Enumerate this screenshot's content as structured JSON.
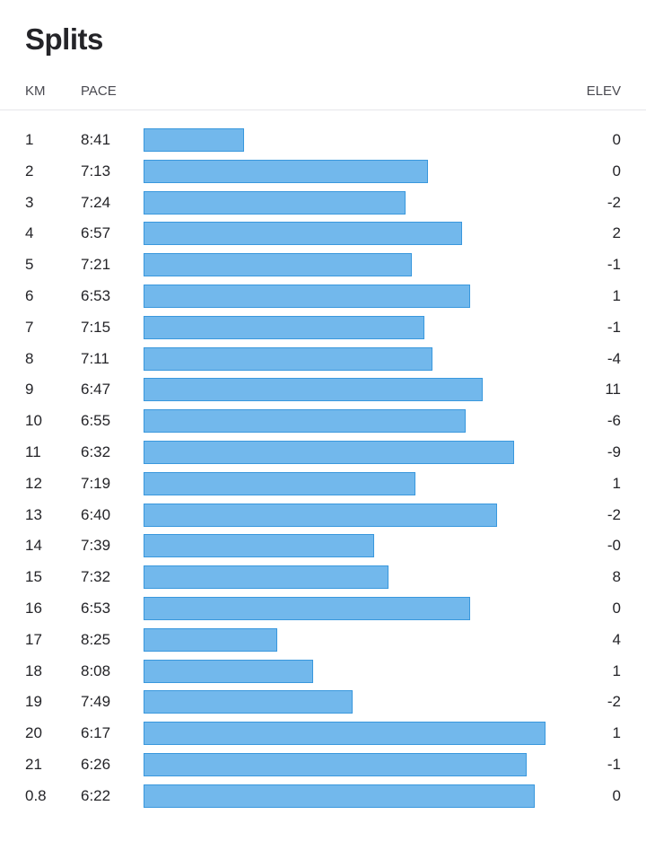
{
  "title": "Splits",
  "columns": {
    "km": "KM",
    "pace": "PACE",
    "elev": "ELEV"
  },
  "colors": {
    "bar_fill": "#72b8ec",
    "bar_border": "#3a98dd"
  },
  "chart_data": {
    "type": "bar",
    "orientation": "horizontal",
    "title": "Splits",
    "pace_unit": "min/km",
    "categories": [
      "1",
      "2",
      "3",
      "4",
      "5",
      "6",
      "7",
      "8",
      "9",
      "10",
      "11",
      "12",
      "13",
      "14",
      "15",
      "16",
      "17",
      "18",
      "19",
      "20",
      "21",
      "0.8"
    ],
    "pace": [
      "8:41",
      "7:13",
      "7:24",
      "6:57",
      "7:21",
      "6:53",
      "7:15",
      "7:11",
      "6:47",
      "6:55",
      "6:32",
      "7:19",
      "6:40",
      "7:39",
      "7:32",
      "6:53",
      "8:25",
      "8:08",
      "7:49",
      "6:17",
      "6:26",
      "6:22"
    ],
    "elev": [
      "0",
      "0",
      "-2",
      "2",
      "-1",
      "1",
      "-1",
      "-4",
      "11",
      "-6",
      "-9",
      "1",
      "-2",
      "-0",
      "8",
      "0",
      "4",
      "1",
      "-2",
      "1",
      "-1",
      "0"
    ]
  }
}
